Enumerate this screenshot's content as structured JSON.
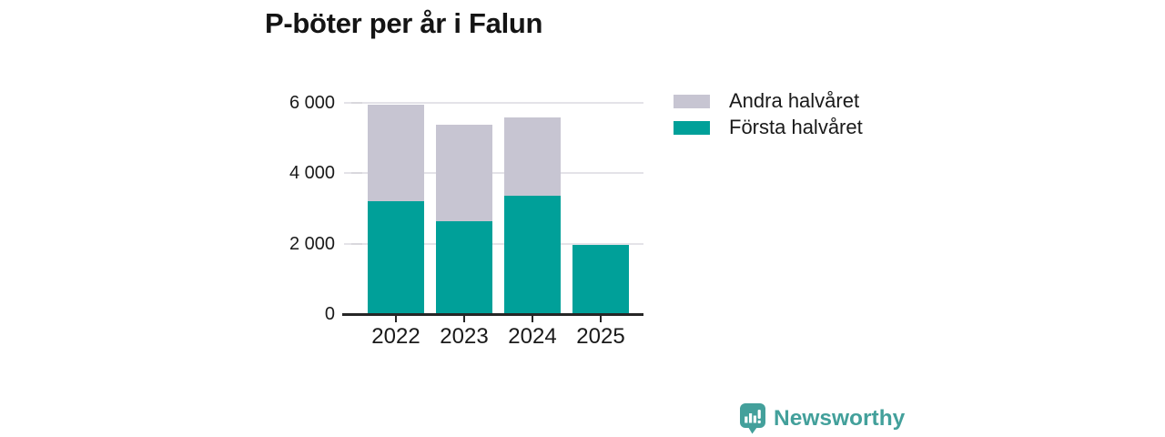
{
  "title": "P-böter per år i Falun",
  "chart_data": {
    "type": "bar",
    "stacked": true,
    "title": "P-böter per år i Falun",
    "categories": [
      "2022",
      "2023",
      "2024",
      "2025"
    ],
    "series": [
      {
        "name": "Första halvåret",
        "color": "#00a099",
        "values": [
          3200,
          2630,
          3350,
          1960
        ]
      },
      {
        "name": "Andra halvåret",
        "color": "#c7c5d2",
        "values": [
          2750,
          2740,
          2230,
          0
        ]
      }
    ],
    "totals": [
      5950,
      5370,
      5580,
      1960
    ],
    "ylim": [
      0,
      6000
    ],
    "yticks": [
      0,
      2000,
      4000,
      6000
    ],
    "ytick_labels": [
      "0",
      "2 000",
      "4 000",
      "6 000"
    ],
    "xlabel": "",
    "ylabel": "",
    "grid": true,
    "legend_position": "right"
  },
  "legend": {
    "items": [
      {
        "label": "Andra halvåret",
        "color": "#c7c5d2"
      },
      {
        "label": "Första halvåret",
        "color": "#00a099"
      }
    ]
  },
  "branding": {
    "logo_text": "Newsworthy",
    "brand_color": "#43a09b"
  },
  "colors": {
    "axis": "#262626",
    "gridline": "#e4e3e8",
    "text": "#1a1a1a"
  }
}
